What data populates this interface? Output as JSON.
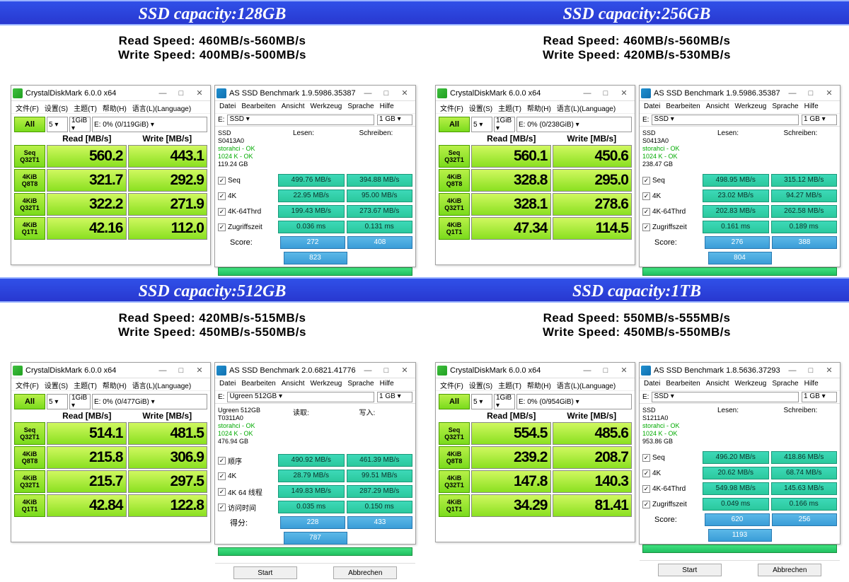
{
  "banners": [
    "SSD capacity:128GB",
    "SSD capacity:256GB",
    "SSD capacity:512GB",
    "SSD capacity:1TB"
  ],
  "speeds": [
    {
      "read": "Read Speed: 460MB/s-560MB/s",
      "write": "Write Speed: 400MB/s-500MB/s"
    },
    {
      "read": "Read Speed: 460MB/s-560MB/s",
      "write": "Write Speed: 420MB/s-530MB/s"
    },
    {
      "read": "Read Speed: 420MB/s-515MB/s",
      "write": "Write Speed: 450MB/s-550MB/s"
    },
    {
      "read": "Read Speed: 550MB/s-555MB/s",
      "write": "Write Speed: 450MB/s-550MB/s"
    }
  ],
  "cdm_title": "CrystalDiskMark 6.0.0 x64",
  "cdm_menu": [
    "文件(F)",
    "设置(S)",
    "主题(T)",
    "帮助(H)",
    "语言(L)(Language)"
  ],
  "cdm_all": "All",
  "cdm_sel_count": "5 ▾",
  "cdm_sel_size": "1GiB ▾",
  "cdm_hdr_read": "Read [MB/s]",
  "cdm_hdr_write": "Write [MB/s]",
  "cdm_labels": [
    [
      "Seq",
      "Q32T1"
    ],
    [
      "4KiB",
      "Q8T8"
    ],
    [
      "4KiB",
      "Q32T1"
    ],
    [
      "4KiB",
      "Q1T1"
    ]
  ],
  "cdm": [
    {
      "drive": "E: 0% (0/119GiB) ▾",
      "vals": [
        [
          "560.2",
          "443.1"
        ],
        [
          "321.7",
          "292.9"
        ],
        [
          "322.2",
          "271.9"
        ],
        [
          "42.16",
          "112.0"
        ]
      ]
    },
    {
      "drive": "E: 0% (0/238GiB) ▾",
      "vals": [
        [
          "560.1",
          "450.6"
        ],
        [
          "328.8",
          "295.0"
        ],
        [
          "328.1",
          "278.6"
        ],
        [
          "47.34",
          "114.5"
        ]
      ]
    },
    {
      "drive": "E: 0% (0/477GiB) ▾",
      "vals": [
        [
          "514.1",
          "481.5"
        ],
        [
          "215.8",
          "306.9"
        ],
        [
          "215.7",
          "297.5"
        ],
        [
          "42.84",
          "122.8"
        ]
      ]
    },
    {
      "drive": "E: 0% (0/954GiB) ▾",
      "vals": [
        [
          "554.5",
          "485.6"
        ],
        [
          "239.2",
          "208.7"
        ],
        [
          "147.8",
          "140.3"
        ],
        [
          "34.29",
          "81.41"
        ]
      ]
    }
  ],
  "as_menu": [
    "Datei",
    "Bearbeiten",
    "Ansicht",
    "Werkzeug",
    "Sprache",
    "Hilfe"
  ],
  "as_drive_lbl": "E:",
  "as_size": "1 GB ▾",
  "as_btns": [
    "Start",
    "Abbrechen"
  ],
  "as": [
    {
      "title": "AS SSD Benchmark 1.9.5986.35387",
      "drive": "SSD ▾",
      "info": [
        "SSD",
        "S0413A0",
        "storahci - OK",
        "1024 K - OK",
        "119.24 GB"
      ],
      "hdr": [
        "Lesen:",
        "Schreiben:"
      ],
      "rows": [
        [
          "Seq",
          "499.76 MB/s",
          "394.88 MB/s"
        ],
        [
          "4K",
          "22.95 MB/s",
          "95.00 MB/s"
        ],
        [
          "4K-64Thrd",
          "199.43 MB/s",
          "273.67 MB/s"
        ],
        [
          "Zugriffszeit",
          "0.036 ms",
          "0.131 ms"
        ]
      ],
      "score_lbl": "Score:",
      "score": [
        "272",
        "408"
      ],
      "total": "823"
    },
    {
      "title": "AS SSD Benchmark 1.9.5986.35387",
      "drive": "SSD ▾",
      "info": [
        "SSD",
        "S0413A0",
        "storahci - OK",
        "1024 K - OK",
        "238.47 GB"
      ],
      "hdr": [
        "Lesen:",
        "Schreiben:"
      ],
      "rows": [
        [
          "Seq",
          "498.95 MB/s",
          "315.12 MB/s"
        ],
        [
          "4K",
          "23.02 MB/s",
          "94.27 MB/s"
        ],
        [
          "4K-64Thrd",
          "202.83 MB/s",
          "262.58 MB/s"
        ],
        [
          "Zugriffszeit",
          "0.161 ms",
          "0.189 ms"
        ]
      ],
      "score_lbl": "Score:",
      "score": [
        "276",
        "388"
      ],
      "total": "804"
    },
    {
      "title": "AS SSD Benchmark 2.0.6821.41776",
      "drive": "Ugreen 512GB ▾",
      "info": [
        "Ugreen 512GB",
        "T0311A0",
        "storahci - OK",
        "1024 K - OK",
        "476.94 GB"
      ],
      "hdr": [
        "读取:",
        "写入:"
      ],
      "rows": [
        [
          "顺序",
          "490.92 MB/s",
          "461.39 MB/s"
        ],
        [
          "4K",
          "28.79 MB/s",
          "99.51 MB/s"
        ],
        [
          "4K 64 线程",
          "149.83 MB/s",
          "287.29 MB/s"
        ],
        [
          "访问时间",
          "0.035 ms",
          "0.150 ms"
        ]
      ],
      "score_lbl": "得分:",
      "score": [
        "228",
        "433"
      ],
      "total": "787"
    },
    {
      "title": "AS SSD Benchmark 1.8.5636.37293",
      "drive": "SSD ▾",
      "info": [
        "SSD",
        "S1211A0",
        "storahci - OK",
        "1024 K - OK",
        "953.86 GB"
      ],
      "hdr": [
        "Lesen:",
        "Schreiben:"
      ],
      "rows": [
        [
          "Seq",
          "496.20 MB/s",
          "418.86 MB/s"
        ],
        [
          "4K",
          "20.62 MB/s",
          "68.74 MB/s"
        ],
        [
          "4K-64Thrd",
          "549.98 MB/s",
          "145.63 MB/s"
        ],
        [
          "Zugriffszeit",
          "0.049 ms",
          "0.166 ms"
        ]
      ],
      "score_lbl": "Score:",
      "score": [
        "620",
        "256"
      ],
      "total": "1193"
    }
  ]
}
